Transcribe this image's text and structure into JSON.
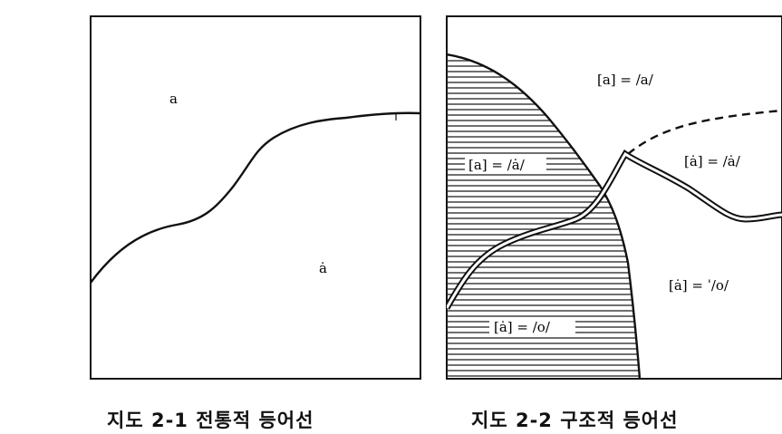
{
  "map1": {
    "labels": {
      "upper": "a",
      "lower": "ȧ"
    },
    "caption": "지도 2-1  전통적 등어선"
  },
  "map2": {
    "labels": {
      "top_right": "[a] = /a/",
      "left_hatched": "[a] = /ȧ/",
      "right_middle": "[ȧ] = /ȧ/",
      "bottom_left": "[ȧ] = /o/",
      "bottom_right": "[ȧ] = ˈ/o/"
    },
    "caption": "지도 2-2  구조적 등어선"
  }
}
